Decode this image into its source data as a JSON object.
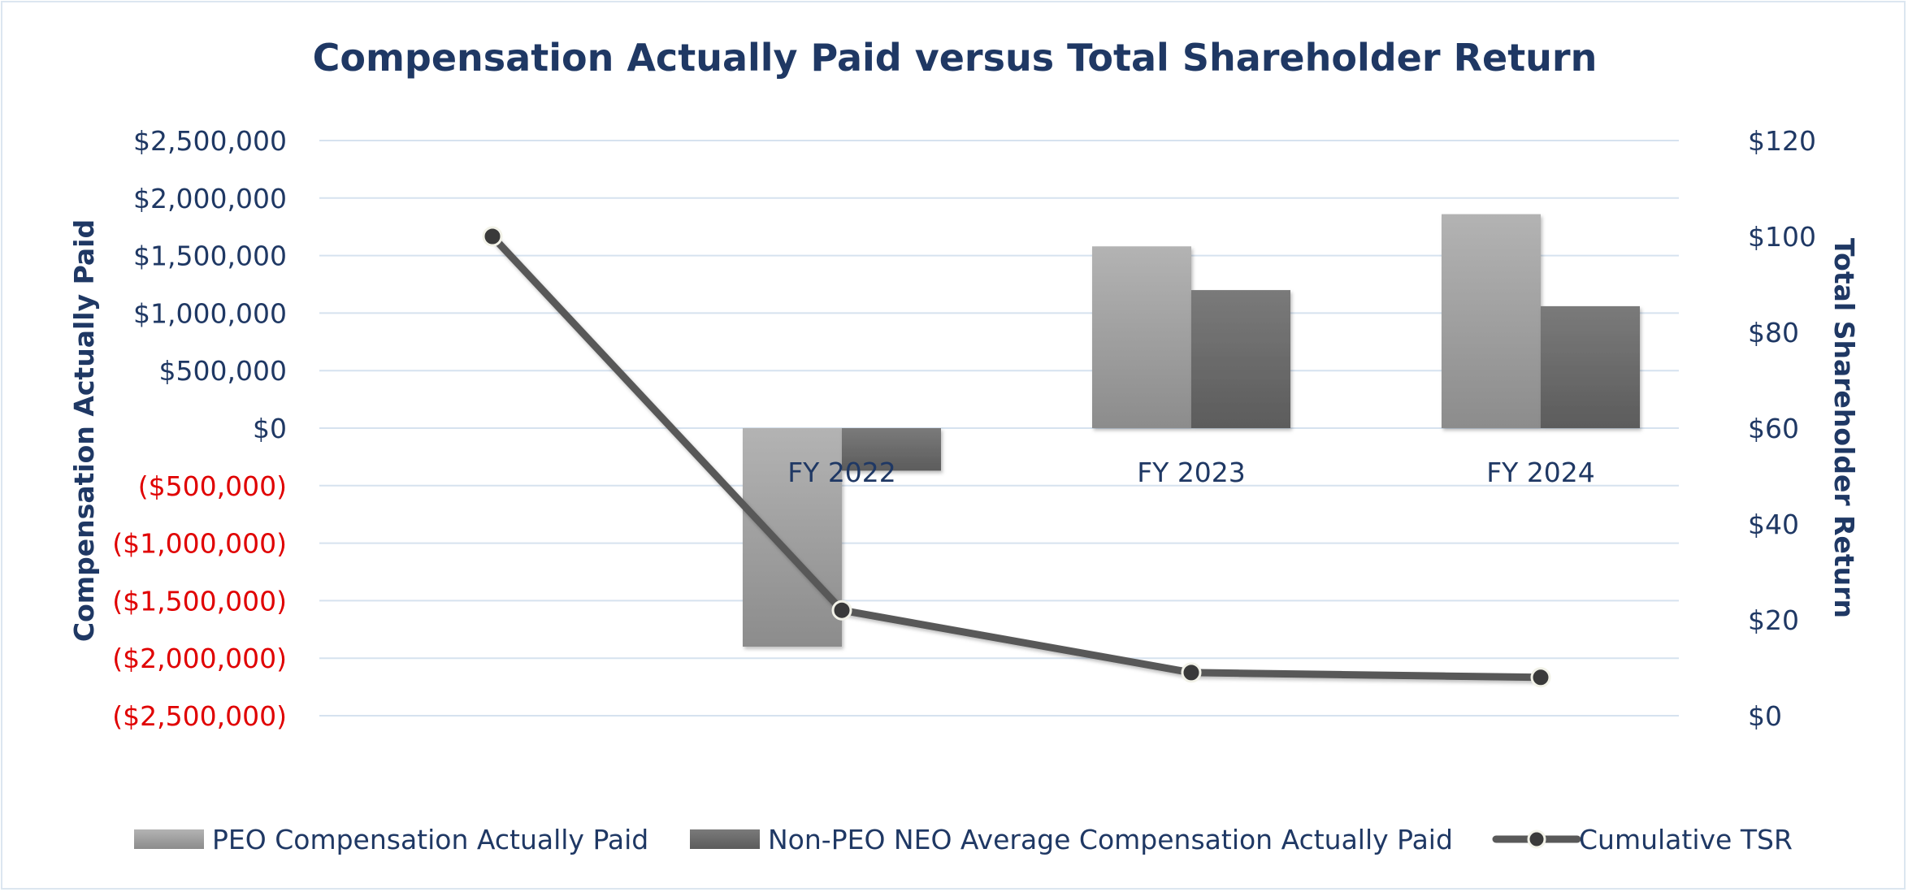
{
  "chart_data": {
    "type": "bar",
    "title": "Compensation Actually Paid versus Total Shareholder Return",
    "categories": [
      "",
      "FY 2022",
      "FY 2023",
      "FY 2024"
    ],
    "series": [
      {
        "name": "PEO Compensation Actually Paid",
        "type": "bar",
        "axis": "left",
        "values": [
          null,
          -1900000,
          1580000,
          1860000
        ]
      },
      {
        "name": "Non-PEO NEO Average Compensation Actually Paid",
        "type": "bar",
        "axis": "left",
        "values": [
          null,
          -370000,
          1200000,
          1060000
        ]
      },
      {
        "name": "Cumulative TSR",
        "type": "line",
        "axis": "right",
        "values": [
          100,
          22,
          9,
          8
        ]
      }
    ],
    "ylabel": "Compensation Actually Paid",
    "y2label": "Total Shareholder Return",
    "ylim": [
      -2500000,
      2500000
    ],
    "y2lim": [
      0,
      120
    ],
    "yticks": [
      2500000,
      2000000,
      1500000,
      1000000,
      500000,
      0,
      -500000,
      -1000000,
      -1500000,
      -2000000,
      -2500000
    ],
    "ytick_labels": [
      "$2,500,000",
      "$2,000,000",
      "$1,500,000",
      "$1,000,000",
      "$500,000",
      "$0",
      "($500,000)",
      "($1,000,000)",
      "($1,500,000)",
      "($2,000,000)",
      "($2,500,000)"
    ],
    "y2ticks": [
      120,
      100,
      80,
      60,
      40,
      20,
      0
    ],
    "y2tick_labels": [
      "$120",
      "$100",
      "$80",
      "$60",
      "$40",
      "$20",
      "$0"
    ],
    "grid": true,
    "legend": "bottom",
    "colors": {
      "title": "#1f3864",
      "axis_text": "#1f3864",
      "negative_text": "#e00000",
      "grid": "#d6e2ef",
      "bar_peo": "#a6a6a6",
      "bar_neo": "#6b6b6b",
      "line": "#595959",
      "marker": "#3a3a3a"
    }
  }
}
